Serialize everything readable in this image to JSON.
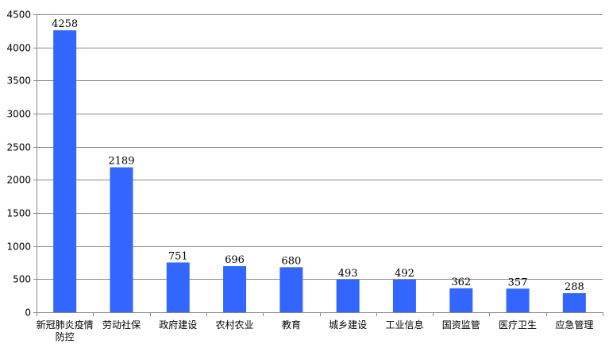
{
  "chart_data": {
    "type": "bar",
    "categories": [
      "新冠肺炎疫情防控",
      "劳动社保",
      "政府建设",
      "农村农业",
      "教育",
      "城乡建设",
      "工业信息",
      "国资监管",
      "医疗卫生",
      "应急管理"
    ],
    "category_lines": [
      [
        "新冠肺炎疫情",
        "防控"
      ],
      [
        "劳动社保"
      ],
      [
        "政府建设"
      ],
      [
        "农村农业"
      ],
      [
        "教育"
      ],
      [
        "城乡建设"
      ],
      [
        "工业信息"
      ],
      [
        "国资监管"
      ],
      [
        "医疗卫生"
      ],
      [
        "应急管理"
      ]
    ],
    "values": [
      4258,
      2189,
      751,
      696,
      680,
      493,
      492,
      362,
      357,
      288
    ],
    "ylim": [
      0,
      4500
    ],
    "yticks": [
      0,
      500,
      1000,
      1500,
      2000,
      2500,
      3000,
      3500,
      4000,
      4500
    ],
    "grid": true,
    "legend": false,
    "title": "",
    "xlabel": "",
    "ylabel": "",
    "bar_color": "#3366ff",
    "grid_color": "#898989"
  }
}
